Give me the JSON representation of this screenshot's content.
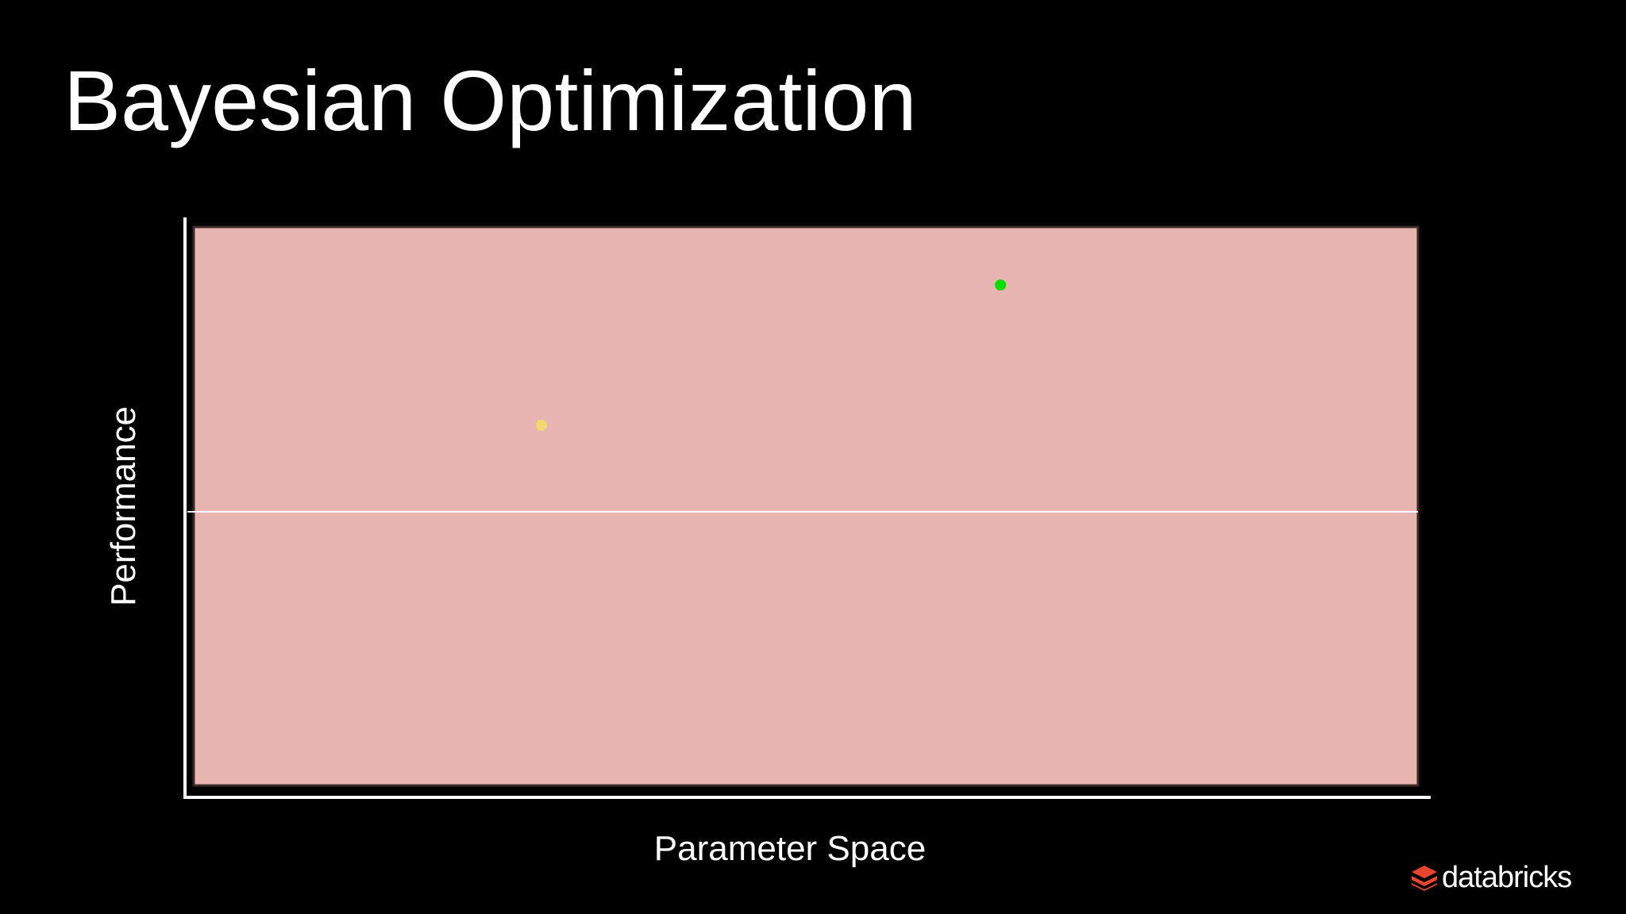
{
  "slide": {
    "title": "Bayesian Optimization",
    "logo_text": "databricks"
  },
  "colors": {
    "background": "#000000",
    "region_fill": "#e8b5b0",
    "axis": "#ffffff",
    "midline": "#ffffff",
    "logo_accent": "#e8452c"
  },
  "icons": {
    "logo": "databricks-logo-icon"
  },
  "chart_data": {
    "type": "scatter",
    "title": "",
    "xlabel": "Parameter Space",
    "ylabel": "Performance",
    "xlim": [
      0,
      1
    ],
    "ylim": [
      0,
      1
    ],
    "grid": false,
    "legend": "none",
    "shaded_region": {
      "x": [
        0,
        1
      ],
      "y": [
        0,
        1
      ],
      "color": "#e8b5b0"
    },
    "reference_line": {
      "y": 0.49,
      "color": "#ffffff"
    },
    "points": [
      {
        "x": 0.284,
        "y": 0.645,
        "color": "#f5d76e"
      },
      {
        "x": 0.659,
        "y": 0.896,
        "color": "#00e000"
      }
    ]
  }
}
